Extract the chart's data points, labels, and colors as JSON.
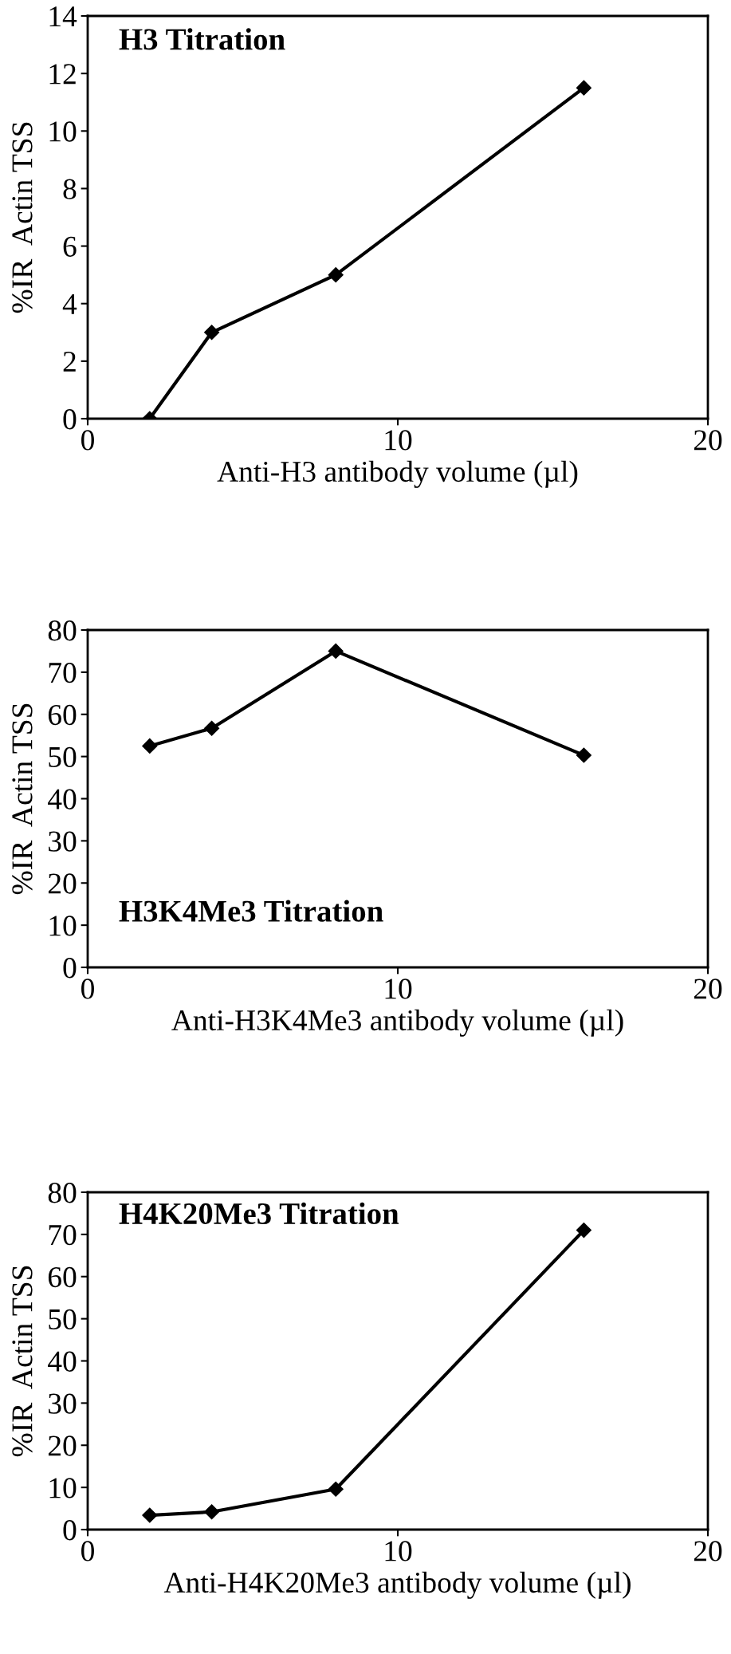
{
  "chart_data": [
    {
      "type": "line",
      "title": "H3 Titration",
      "xlabel": "Anti-H3 antibody volume (µl)",
      "ylabel": "%IR  Actin TSS",
      "x": [
        2,
        4,
        8,
        16
      ],
      "series": [
        {
          "color": "#000000",
          "values": [
            0,
            3,
            5,
            11.5
          ]
        }
      ],
      "xlim": [
        0,
        20
      ],
      "xticks": [
        0,
        10,
        20
      ],
      "ylim": [
        0,
        14
      ],
      "yticks": [
        0,
        2,
        4,
        6,
        8,
        10,
        12,
        14
      ],
      "marker": "diamond",
      "line_style": "solid",
      "grid": false,
      "legend": false
    },
    {
      "type": "line",
      "title": "H3K4Me3 Titration",
      "xlabel": "Anti-H3K4Me3 antibody volume (µl)",
      "ylabel": "%IR  Actin TSS",
      "x": [
        2,
        4,
        8,
        16
      ],
      "series": [
        {
          "color": "#000000",
          "values": [
            52.5,
            56.7,
            75,
            50.3
          ]
        }
      ],
      "xlim": [
        0,
        20
      ],
      "xticks": [
        0,
        10,
        20
      ],
      "ylim": [
        0,
        80
      ],
      "yticks": [
        0,
        10,
        20,
        30,
        40,
        50,
        60,
        70,
        80
      ],
      "marker": "diamond",
      "line_style": "solid",
      "grid": false,
      "legend": false
    },
    {
      "type": "line",
      "title": "H4K20Me3 Titration",
      "xlabel": "Anti-H4K20Me3 antibody volume (µl)",
      "ylabel": "%IR  Actin TSS",
      "x": [
        2,
        4,
        8,
        16
      ],
      "series": [
        {
          "color": "#000000",
          "values": [
            3.4,
            4.2,
            9.6,
            71
          ]
        }
      ],
      "xlim": [
        0,
        20
      ],
      "xticks": [
        0,
        10,
        20
      ],
      "ylim": [
        0,
        80
      ],
      "yticks": [
        0,
        10,
        20,
        30,
        40,
        50,
        60,
        70,
        80
      ],
      "marker": "diamond",
      "line_style": "solid",
      "grid": false,
      "legend": false
    }
  ]
}
